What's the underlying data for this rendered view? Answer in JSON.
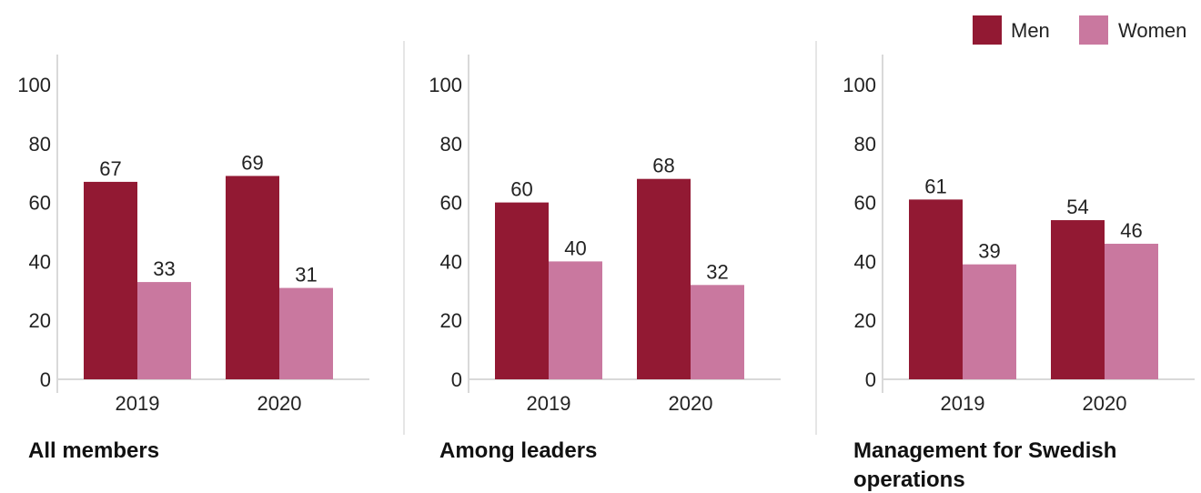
{
  "legend": {
    "placement": "top-right",
    "items": [
      {
        "name": "Men",
        "color": "#921933"
      },
      {
        "name": "Women",
        "color": "#c9789f"
      }
    ]
  },
  "chart_data": [
    {
      "type": "bar",
      "title": "All members",
      "categories": [
        "2019",
        "2020"
      ],
      "series": [
        {
          "name": "Men",
          "values": [
            67,
            69
          ]
        },
        {
          "name": "Women",
          "values": [
            33,
            31
          ]
        }
      ],
      "yticks": [
        "0",
        "20",
        "40",
        "60",
        "80",
        "100"
      ],
      "ylim": [
        0,
        100
      ],
      "grid": false
    },
    {
      "type": "bar",
      "title": "Among leaders",
      "categories": [
        "2019",
        "2020"
      ],
      "series": [
        {
          "name": "Men",
          "values": [
            60,
            68
          ]
        },
        {
          "name": "Women",
          "values": [
            40,
            32
          ]
        }
      ],
      "yticks": [
        "0",
        "20",
        "40",
        "60",
        "80",
        "100"
      ],
      "ylim": [
        0,
        100
      ],
      "grid": false
    },
    {
      "type": "bar",
      "title": "Management for Swedish operations",
      "categories": [
        "2019",
        "2020"
      ],
      "series": [
        {
          "name": "Men",
          "values": [
            61,
            54
          ]
        },
        {
          "name": "Women",
          "values": [
            39,
            46
          ]
        }
      ],
      "yticks": [
        "0",
        "20",
        "40",
        "60",
        "80",
        "100"
      ],
      "ylim": [
        0,
        100
      ],
      "grid": false
    }
  ]
}
